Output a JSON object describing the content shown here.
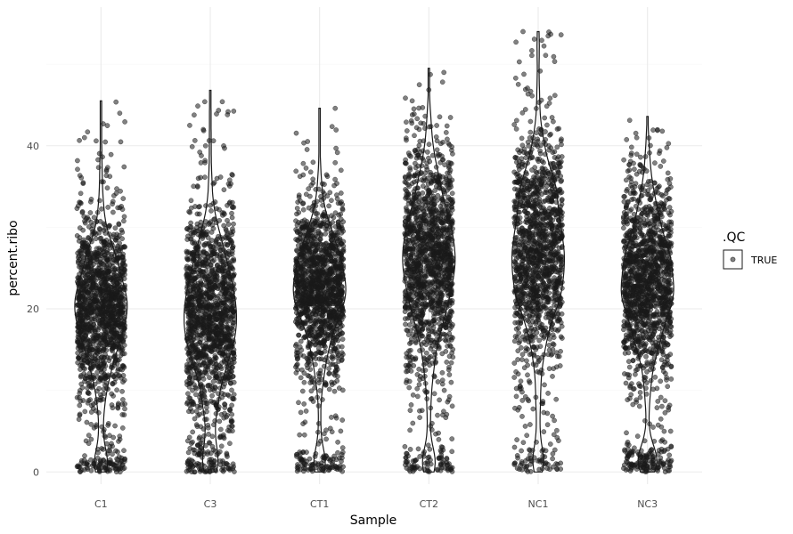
{
  "chart_data": {
    "type": "violin",
    "xlabel": "Sample",
    "ylabel": "percent.ribo",
    "categories": [
      "C1",
      "C3",
      "CT1",
      "CT2",
      "NC1",
      "NC3"
    ],
    "ylim": [
      -1.5,
      57
    ],
    "y_ticks": [
      0,
      20,
      40
    ],
    "grid": true,
    "legend": {
      "title": ".QC",
      "entries": [
        "TRUE"
      ],
      "position": "right"
    },
    "point_color": "#1a1a1a",
    "point_opacity": 0.55,
    "line_color": "#1a1a1a",
    "samples": [
      {
        "name": "C1",
        "min": 0.0,
        "max": 45.5,
        "mode": 20.3,
        "spread": 5.5,
        "zero_cluster": 0.06,
        "n_points": 1500
      },
      {
        "name": "C3",
        "min": 0.0,
        "max": 46.8,
        "mode": 19.5,
        "spread": 6.5,
        "zero_cluster": 0.06,
        "n_points": 1500
      },
      {
        "name": "CT1",
        "min": 0.0,
        "max": 44.6,
        "mode": 22.7,
        "spread": 5.2,
        "zero_cluster": 0.05,
        "n_points": 1500
      },
      {
        "name": "CT2",
        "min": 0.0,
        "max": 49.5,
        "mode": 26.0,
        "spread": 6.8,
        "zero_cluster": 0.05,
        "n_points": 1500
      },
      {
        "name": "NC1",
        "min": 0.0,
        "max": 54.0,
        "mode": 27.5,
        "spread": 7.2,
        "zero_cluster": 0.04,
        "n_points": 1400
      },
      {
        "name": "NC3",
        "min": 0.0,
        "max": 43.6,
        "mode": 23.5,
        "spread": 6.0,
        "zero_cluster": 0.08,
        "n_points": 1500
      }
    ]
  }
}
